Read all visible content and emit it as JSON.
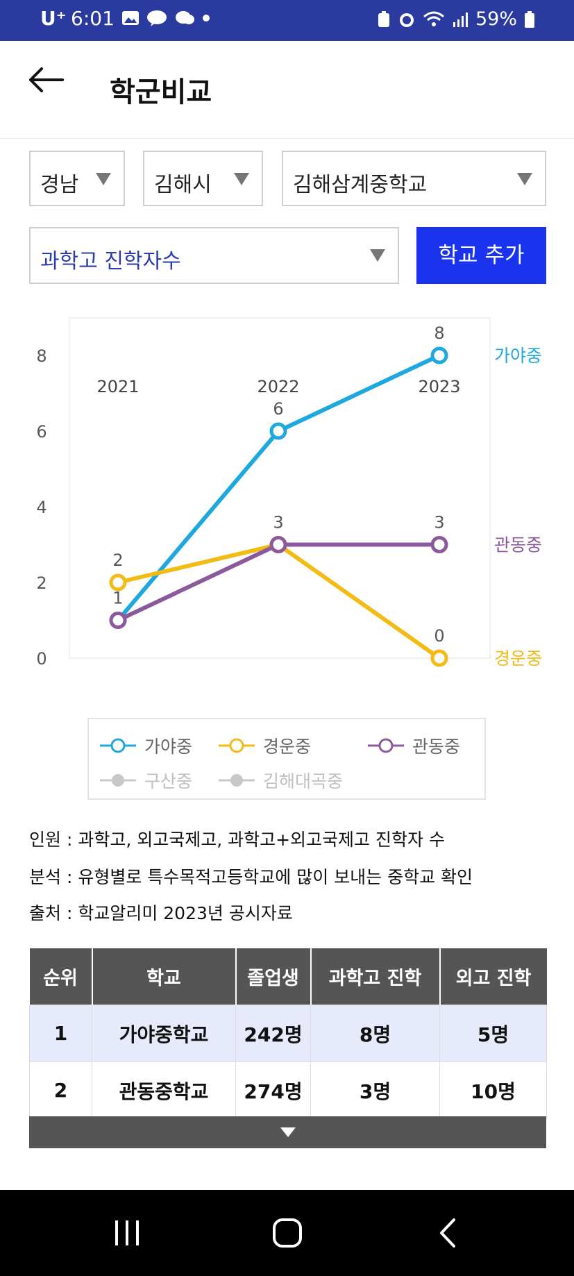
{
  "status_bar": {
    "carrier": "U⁺",
    "time": "6:01",
    "battery": "59%"
  },
  "header": {
    "title": "학군비교"
  },
  "filters": {
    "region": "경남",
    "city": "김해시",
    "school": "김해삼계중학교",
    "metric": "과학고 진학자수",
    "add_button": "학교 추가"
  },
  "chart_data": {
    "type": "line",
    "x": [
      "2021",
      "2022",
      "2023"
    ],
    "yticks": [
      "0",
      "2",
      "4",
      "6",
      "8"
    ],
    "ylim": [
      0,
      9
    ],
    "series": [
      {
        "name": "가야중",
        "color": "#1ea8de",
        "values": [
          1,
          6,
          8
        ],
        "labels": [
          "",
          "6",
          "8"
        ]
      },
      {
        "name": "경운중",
        "color": "#f2bb16",
        "values": [
          2,
          3,
          0
        ],
        "labels": [
          "2",
          "3",
          "0"
        ]
      },
      {
        "name": "관동중",
        "color": "#8c5a9c",
        "values": [
          1,
          3,
          3
        ],
        "labels": [
          "1",
          "",
          "3"
        ]
      }
    ],
    "end_labels": [
      {
        "name": "가야중",
        "color": "#1ea8de",
        "value": 8
      },
      {
        "name": "관동중",
        "color": "#8c5a9c",
        "value": 3
      },
      {
        "name": "경운중",
        "color": "#f2bb16",
        "value": 0
      }
    ],
    "legend": [
      {
        "name": "가야중",
        "color": "#1ea8de",
        "active": true
      },
      {
        "name": "경운중",
        "color": "#f2bb16",
        "active": true
      },
      {
        "name": "관동중",
        "color": "#8c5a9c",
        "active": true
      },
      {
        "name": "구산중",
        "color": "#c8c8c8",
        "active": false
      },
      {
        "name": "김해대곡중",
        "color": "#c8c8c8",
        "active": false
      }
    ]
  },
  "info": {
    "line1": "인원 : 과학고, 외고국제고, 과학고+외고국제고 진학자 수",
    "line2": "분석 : 유형별로 특수목적고등학교에 많이 보내는 중학교 확인",
    "line3": "출처 : 학교알리미 2023년 공시자료"
  },
  "table": {
    "headers": [
      "순위",
      "학교",
      "졸업생",
      "과학고 진학",
      "외고 진학"
    ],
    "rows": [
      [
        "1",
        "가야중학교",
        "242명",
        "8명",
        "5명"
      ],
      [
        "2",
        "관동중학교",
        "274명",
        "3명",
        "10명"
      ]
    ]
  }
}
